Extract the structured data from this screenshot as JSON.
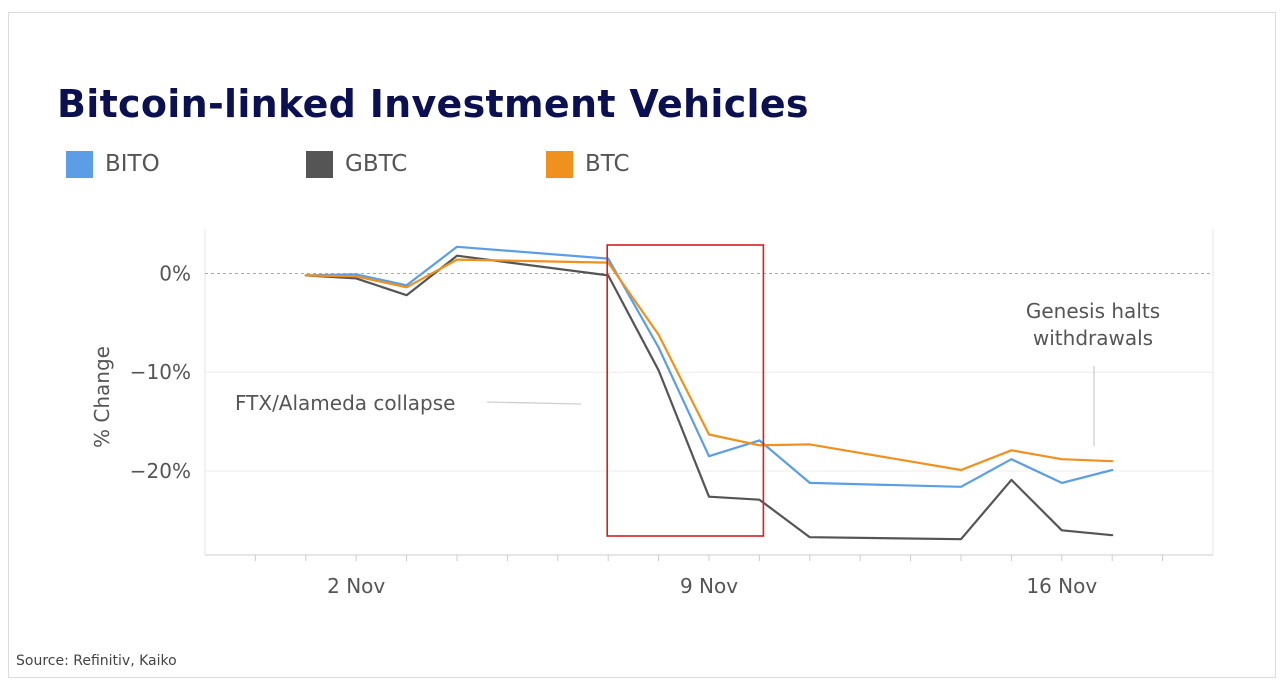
{
  "chart_data": {
    "type": "line",
    "title": "Bitcoin-linked Investment Vehicles",
    "ylabel": "% Change",
    "xlabel": "",
    "source": "Source: Refinitiv, Kaiko",
    "ylim": [
      -28.5,
      4.5
    ],
    "y_ticks": [
      0,
      -10,
      -20
    ],
    "y_tick_labels": [
      "0%",
      "−10%",
      "−20%"
    ],
    "x_tick_labels": [
      {
        "label": "2 Nov",
        "date": "2022-11-02"
      },
      {
        "label": "9 Nov",
        "date": "2022-11-09"
      },
      {
        "label": "16 Nov",
        "date": "2022-11-16"
      }
    ],
    "xlim": [
      "2022-10-30",
      "2022-11-19"
    ],
    "legend_position": "top-left",
    "grid": true,
    "series": [
      {
        "name": "BITO",
        "color": "#5b9ee6",
        "points": [
          [
            "2022-11-01",
            -0.2
          ],
          [
            "2022-11-02",
            -0.1
          ],
          [
            "2022-11-03",
            -1.2
          ],
          [
            "2022-11-04",
            2.7
          ],
          [
            "2022-11-07",
            1.5
          ],
          [
            "2022-11-08",
            -7.5
          ],
          [
            "2022-11-09",
            -18.5
          ],
          [
            "2022-11-10",
            -16.9
          ],
          [
            "2022-11-11",
            -21.2
          ],
          [
            "2022-11-14",
            -21.6
          ],
          [
            "2022-11-15",
            -18.8
          ],
          [
            "2022-11-16",
            -21.2
          ],
          [
            "2022-11-17",
            -19.9
          ]
        ]
      },
      {
        "name": "GBTC",
        "color": "#555555",
        "points": [
          [
            "2022-11-01",
            -0.2
          ],
          [
            "2022-11-02",
            -0.5
          ],
          [
            "2022-11-03",
            -2.2
          ],
          [
            "2022-11-04",
            1.8
          ],
          [
            "2022-11-07",
            -0.2
          ],
          [
            "2022-11-08",
            -9.8
          ],
          [
            "2022-11-09",
            -22.6
          ],
          [
            "2022-11-10",
            -22.9
          ],
          [
            "2022-11-11",
            -26.7
          ],
          [
            "2022-11-14",
            -26.9
          ],
          [
            "2022-11-15",
            -20.9
          ],
          [
            "2022-11-16",
            -26.0
          ],
          [
            "2022-11-17",
            -26.5
          ]
        ]
      },
      {
        "name": "BTC",
        "color": "#f0901e",
        "points": [
          [
            "2022-11-01",
            -0.2
          ],
          [
            "2022-11-02",
            -0.3
          ],
          [
            "2022-11-03",
            -1.4
          ],
          [
            "2022-11-04",
            1.4
          ],
          [
            "2022-11-07",
            1.1
          ],
          [
            "2022-11-08",
            -6.2
          ],
          [
            "2022-11-09",
            -16.3
          ],
          [
            "2022-11-10",
            -17.4
          ],
          [
            "2022-11-11",
            -17.3
          ],
          [
            "2022-11-14",
            -19.9
          ],
          [
            "2022-11-15",
            -17.9
          ],
          [
            "2022-11-16",
            -18.8
          ],
          [
            "2022-11-17",
            -19.0
          ]
        ]
      }
    ],
    "annotations": [
      {
        "text": "FTX/Alameda collapse"
      },
      {
        "text": "Genesis halts withdrawals",
        "lines": [
          "Genesis halts",
          "withdrawals"
        ]
      }
    ],
    "highlight": {
      "x_start": "2022-11-07",
      "x_end": "2022-11-10",
      "color": "#d32020"
    }
  }
}
